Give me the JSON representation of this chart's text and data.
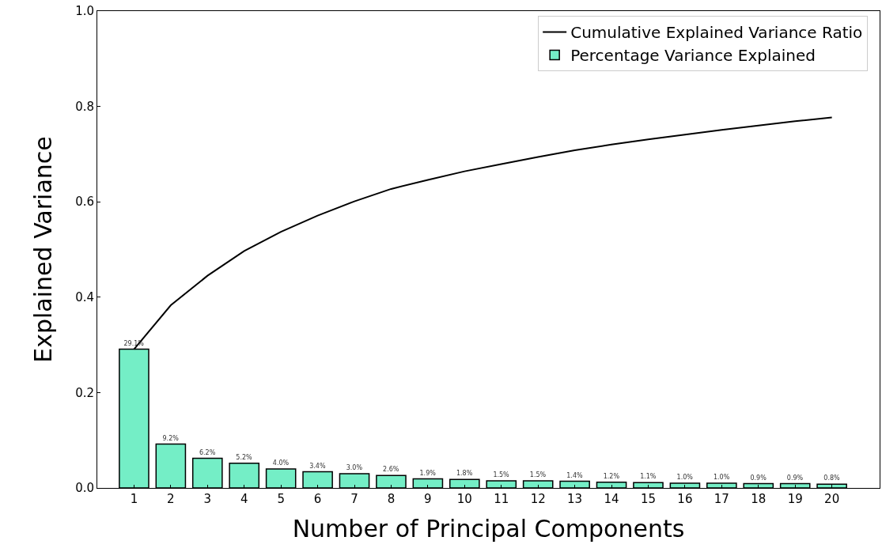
{
  "chart_data": {
    "type": "bar",
    "xlabel": "Number of Principal Components",
    "ylabel": "Explained Variance",
    "x": [
      1,
      2,
      3,
      4,
      5,
      6,
      7,
      8,
      9,
      10,
      11,
      12,
      13,
      14,
      15,
      16,
      17,
      18,
      19,
      20
    ],
    "xlim": [
      0,
      21.3
    ],
    "xticks": [
      1,
      2,
      3,
      4,
      5,
      6,
      7,
      8,
      9,
      10,
      11,
      12,
      13,
      14,
      15,
      16,
      17,
      18,
      19,
      20
    ],
    "ylim": [
      0,
      1.0
    ],
    "yticks": [
      {
        "value": 0,
        "label": "0.0"
      },
      0.2,
      0.4,
      0.6,
      0.8,
      {
        "value": 1,
        "label": "1.0"
      }
    ],
    "legend": "top right",
    "series": [
      {
        "name": "Cumulative Explained Variance Ratio",
        "type": "line",
        "color": "#000000",
        "values": [
          0.291,
          0.383,
          0.445,
          0.497,
          0.537,
          0.571,
          0.601,
          0.627,
          0.646,
          0.664,
          0.679,
          0.694,
          0.708,
          0.72,
          0.731,
          0.741,
          0.751,
          0.76,
          0.769,
          0.777
        ]
      },
      {
        "name": "Percentage Variance Explained",
        "color": "#74eec6",
        "values": [
          0.291,
          0.092,
          0.062,
          0.052,
          0.04,
          0.034,
          0.03,
          0.026,
          0.019,
          0.018,
          0.015,
          0.015,
          0.014,
          0.012,
          0.011,
          0.01,
          0.01,
          0.009,
          0.009,
          0.008
        ],
        "value_labels": [
          "29.1%",
          "9.2%",
          "6.2%",
          "5.2%",
          "4.0%",
          "3.4%",
          "3.0%",
          "2.6%",
          "1.9%",
          "1.8%",
          "1.5%",
          "1.5%",
          "1.4%",
          "1.2%",
          "1.1%",
          "1.0%",
          "1.0%",
          "0.9%",
          "0.9%",
          "0.8%"
        ]
      }
    ]
  }
}
